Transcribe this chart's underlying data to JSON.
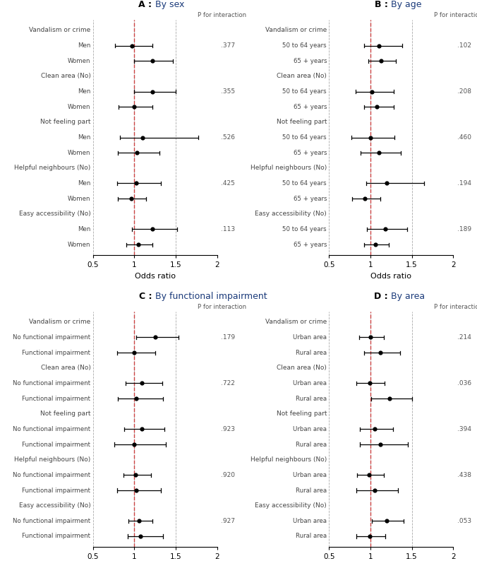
{
  "panels": [
    {
      "title": "A",
      "subtitle": "By sex",
      "p_label": "P for interaction",
      "xlabel": "Odds ratio",
      "xlim": [
        0.5,
        2.0
      ],
      "xticks": [
        0.5,
        1.0,
        1.5,
        2.0
      ],
      "xtick_labels": [
        "0.5",
        "1",
        "1.5",
        "2"
      ],
      "rows": [
        {
          "label": "Vandalism or crime",
          "is_header": true,
          "or": null,
          "lo": null,
          "hi": null,
          "p": null
        },
        {
          "label": "Men",
          "is_header": false,
          "or": 0.97,
          "lo": 0.77,
          "hi": 1.22,
          "p": ".377"
        },
        {
          "label": "Women",
          "is_header": false,
          "or": 1.22,
          "lo": 1.0,
          "hi": 1.47,
          "p": null
        },
        {
          "label": "Clean area (No)",
          "is_header": true,
          "or": null,
          "lo": null,
          "hi": null,
          "p": null
        },
        {
          "label": "Men",
          "is_header": false,
          "or": 1.22,
          "lo": 1.0,
          "hi": 1.5,
          "p": ".355"
        },
        {
          "label": "Women",
          "is_header": false,
          "or": 1.0,
          "lo": 0.81,
          "hi": 1.22,
          "p": null
        },
        {
          "label": "Not feeling part",
          "is_header": true,
          "or": null,
          "lo": null,
          "hi": null,
          "p": null
        },
        {
          "label": "Men",
          "is_header": false,
          "or": 1.1,
          "lo": 0.83,
          "hi": 1.77,
          "p": ".526"
        },
        {
          "label": "Women",
          "is_header": false,
          "or": 1.03,
          "lo": 0.8,
          "hi": 1.3,
          "p": null
        },
        {
          "label": "Helpful neighbours (No)",
          "is_header": true,
          "or": null,
          "lo": null,
          "hi": null,
          "p": null
        },
        {
          "label": "Men",
          "is_header": false,
          "or": 1.02,
          "lo": 0.79,
          "hi": 1.32,
          "p": ".425"
        },
        {
          "label": "Women",
          "is_header": false,
          "or": 0.96,
          "lo": 0.8,
          "hi": 1.14,
          "p": null
        },
        {
          "label": "Easy accessibility (No)",
          "is_header": true,
          "or": null,
          "lo": null,
          "hi": null,
          "p": null
        },
        {
          "label": "Men",
          "is_header": false,
          "or": 1.22,
          "lo": 0.97,
          "hi": 1.52,
          "p": ".113"
        },
        {
          "label": "Women",
          "is_header": false,
          "or": 1.05,
          "lo": 0.9,
          "hi": 1.22,
          "p": null
        }
      ]
    },
    {
      "title": "B",
      "subtitle": "By age",
      "p_label": "P for interaction",
      "xlabel": "Odds ratio",
      "xlim": [
        0.5,
        2.0
      ],
      "xticks": [
        0.5,
        1.0,
        1.5,
        2.0
      ],
      "xtick_labels": [
        "0.5",
        "1",
        "1.5",
        "2"
      ],
      "rows": [
        {
          "label": "Vandalism or crime",
          "is_header": true,
          "or": null,
          "lo": null,
          "hi": null,
          "p": null
        },
        {
          "label": "50 to 64 years",
          "is_header": false,
          "or": 1.1,
          "lo": 0.92,
          "hi": 1.38,
          "p": ".102"
        },
        {
          "label": "65 + years",
          "is_header": false,
          "or": 1.13,
          "lo": 0.97,
          "hi": 1.31,
          "p": null
        },
        {
          "label": "Clean area (No)",
          "is_header": true,
          "or": null,
          "lo": null,
          "hi": null,
          "p": null
        },
        {
          "label": "50 to 64 years",
          "is_header": false,
          "or": 1.02,
          "lo": 0.82,
          "hi": 1.28,
          "p": ".208"
        },
        {
          "label": "65 + years",
          "is_header": false,
          "or": 1.08,
          "lo": 0.92,
          "hi": 1.28,
          "p": null
        },
        {
          "label": "Not feeling part",
          "is_header": true,
          "or": null,
          "lo": null,
          "hi": null,
          "p": null
        },
        {
          "label": "50 to 64 years",
          "is_header": false,
          "or": 1.0,
          "lo": 0.77,
          "hi": 1.29,
          "p": ".460"
        },
        {
          "label": "65 + years",
          "is_header": false,
          "or": 1.1,
          "lo": 0.88,
          "hi": 1.37,
          "p": null
        },
        {
          "label": "Helpful neighbours (No)",
          "is_header": true,
          "or": null,
          "lo": null,
          "hi": null,
          "p": null
        },
        {
          "label": "50 to 64 years",
          "is_header": false,
          "or": 1.2,
          "lo": 0.95,
          "hi": 1.65,
          "p": ".194"
        },
        {
          "label": "65 + years",
          "is_header": false,
          "or": 0.93,
          "lo": 0.78,
          "hi": 1.12,
          "p": null
        },
        {
          "label": "Easy accessibility (No)",
          "is_header": true,
          "or": null,
          "lo": null,
          "hi": null,
          "p": null
        },
        {
          "label": "50 to 64 years",
          "is_header": false,
          "or": 1.18,
          "lo": 0.96,
          "hi": 1.44,
          "p": ".189"
        },
        {
          "label": "65 + years",
          "is_header": false,
          "or": 1.06,
          "lo": 0.92,
          "hi": 1.22,
          "p": null
        }
      ]
    },
    {
      "title": "C",
      "subtitle": "By functional impairment",
      "p_label": "P for interaction",
      "xlabel": "Odds ratio",
      "xlim": [
        0.5,
        2.0
      ],
      "xticks": [
        0.5,
        1.0,
        1.5,
        2.0
      ],
      "xtick_labels": [
        "0.5",
        "1",
        "1.5",
        "2"
      ],
      "rows": [
        {
          "label": "Vandalism or crime",
          "is_header": true,
          "or": null,
          "lo": null,
          "hi": null,
          "p": null
        },
        {
          "label": "No functional impairment",
          "is_header": false,
          "or": 1.25,
          "lo": 1.02,
          "hi": 1.53,
          "p": ".179"
        },
        {
          "label": "Functional impairment",
          "is_header": false,
          "or": 1.0,
          "lo": 0.79,
          "hi": 1.25,
          "p": null
        },
        {
          "label": "Clean area (No)",
          "is_header": true,
          "or": null,
          "lo": null,
          "hi": null,
          "p": null
        },
        {
          "label": "No functional impairment",
          "is_header": false,
          "or": 1.09,
          "lo": 0.89,
          "hi": 1.34,
          "p": ".722"
        },
        {
          "label": "Functional impairment",
          "is_header": false,
          "or": 1.02,
          "lo": 0.8,
          "hi": 1.35,
          "p": null
        },
        {
          "label": "Not feeling part",
          "is_header": true,
          "or": null,
          "lo": null,
          "hi": null,
          "p": null
        },
        {
          "label": "No functional impairment",
          "is_header": false,
          "or": 1.09,
          "lo": 0.88,
          "hi": 1.36,
          "p": ".923"
        },
        {
          "label": "Functional impairment",
          "is_header": false,
          "or": 1.0,
          "lo": 0.76,
          "hi": 1.38,
          "p": null
        },
        {
          "label": "Helpful neighbours (No)",
          "is_header": true,
          "or": null,
          "lo": null,
          "hi": null,
          "p": null
        },
        {
          "label": "No functional impairment",
          "is_header": false,
          "or": 1.01,
          "lo": 0.87,
          "hi": 1.2,
          "p": ".920"
        },
        {
          "label": "Functional impairment",
          "is_header": false,
          "or": 1.02,
          "lo": 0.79,
          "hi": 1.32,
          "p": null
        },
        {
          "label": "Easy accessibility (No)",
          "is_header": true,
          "or": null,
          "lo": null,
          "hi": null,
          "p": null
        },
        {
          "label": "No functional impairment",
          "is_header": false,
          "or": 1.06,
          "lo": 0.93,
          "hi": 1.22,
          "p": ".927"
        },
        {
          "label": "Functional impairment",
          "is_header": false,
          "or": 1.07,
          "lo": 0.92,
          "hi": 1.35,
          "p": null
        }
      ]
    },
    {
      "title": "D",
      "subtitle": "By area",
      "p_label": "P for interaction",
      "xlabel": "Odds ratio",
      "xlim": [
        0.5,
        2.0
      ],
      "xticks": [
        0.5,
        1.0,
        1.5,
        2.0
      ],
      "xtick_labels": [
        "0.5",
        "1",
        "1.5",
        "2"
      ],
      "rows": [
        {
          "label": "Vandalism or crime",
          "is_header": true,
          "or": null,
          "lo": null,
          "hi": null,
          "p": null
        },
        {
          "label": "Urban area",
          "is_header": false,
          "or": 1.0,
          "lo": 0.86,
          "hi": 1.16,
          "p": ".214"
        },
        {
          "label": "Rural area",
          "is_header": false,
          "or": 1.12,
          "lo": 0.92,
          "hi": 1.36,
          "p": null
        },
        {
          "label": "Clean area (No)",
          "is_header": true,
          "or": null,
          "lo": null,
          "hi": null,
          "p": null
        },
        {
          "label": "Urban area",
          "is_header": false,
          "or": 0.99,
          "lo": 0.83,
          "hi": 1.17,
          "p": ".036"
        },
        {
          "label": "Rural area",
          "is_header": false,
          "or": 1.23,
          "lo": 1.01,
          "hi": 1.5,
          "p": null
        },
        {
          "label": "Not feeling part",
          "is_header": true,
          "or": null,
          "lo": null,
          "hi": null,
          "p": null
        },
        {
          "label": "Urban area",
          "is_header": false,
          "or": 1.05,
          "lo": 0.87,
          "hi": 1.27,
          "p": ".394"
        },
        {
          "label": "Rural area",
          "is_header": false,
          "or": 1.12,
          "lo": 0.87,
          "hi": 1.45,
          "p": null
        },
        {
          "label": "Helpful neighbours (No)",
          "is_header": true,
          "or": null,
          "lo": null,
          "hi": null,
          "p": null
        },
        {
          "label": "Urban area",
          "is_header": false,
          "or": 0.98,
          "lo": 0.84,
          "hi": 1.16,
          "p": ".438"
        },
        {
          "label": "Rural area",
          "is_header": false,
          "or": 1.05,
          "lo": 0.83,
          "hi": 1.33,
          "p": null
        },
        {
          "label": "Easy accessibility (No)",
          "is_header": true,
          "or": null,
          "lo": null,
          "hi": null,
          "p": null
        },
        {
          "label": "Urban area",
          "is_header": false,
          "or": 1.2,
          "lo": 1.02,
          "hi": 1.4,
          "p": ".053"
        },
        {
          "label": "Rural area",
          "is_header": false,
          "or": 0.99,
          "lo": 0.83,
          "hi": 1.18,
          "p": null
        }
      ]
    }
  ],
  "vline_color": "#cc4444",
  "ci_color": "black",
  "dot_color": "black",
  "header_color": "#444444",
  "label_color": "#444444",
  "p_color": "#555555",
  "title_letter_color": "black",
  "title_subtitle_color": "#1a3a7a",
  "grid_color": "#aaaaaa",
  "bg_color": "white"
}
